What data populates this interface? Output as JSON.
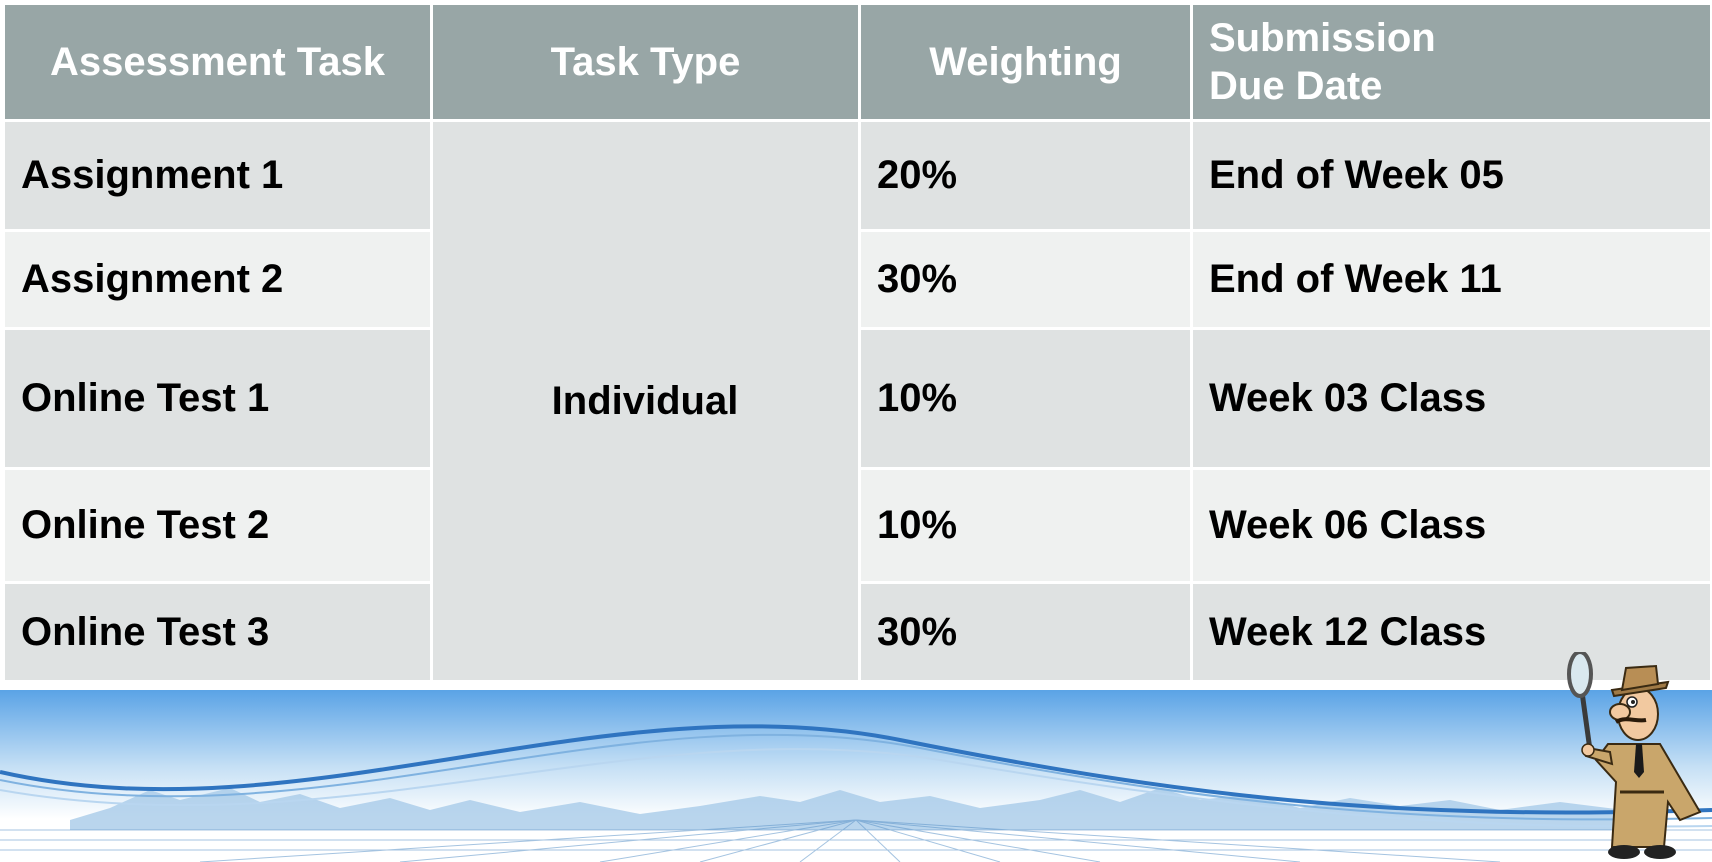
{
  "table": {
    "headers": [
      "Assessment Task",
      "Task Type",
      "Weighting",
      "Submission Due Date"
    ],
    "header_due_line1": "Submission",
    "header_due_line2": "Due Date",
    "task_type_merged": "Individual",
    "rows": [
      {
        "task": "Assignment 1",
        "weighting": "20%",
        "due": "End of Week 05"
      },
      {
        "task": "Assignment 2",
        "weighting": "30%",
        "due": "End of Week 11"
      },
      {
        "task": "Online Test 1",
        "weighting": "10%",
        "due": "Week 03 Class"
      },
      {
        "task": "Online Test 2",
        "weighting": "10%",
        "due": "Week 06 Class"
      },
      {
        "task": "Online Test 3",
        "weighting": "30%",
        "due": "Week 12 Class"
      }
    ]
  },
  "colors": {
    "header_bg": "#98a6a6",
    "row_dark": "#dfe2e2",
    "row_light": "#eff1f0",
    "sky_blue": "#5aa3e6"
  },
  "decor": {
    "footer_image": "blue-horizon-wave-banner",
    "mascot": "detective-with-magnifying-glass-icon"
  }
}
